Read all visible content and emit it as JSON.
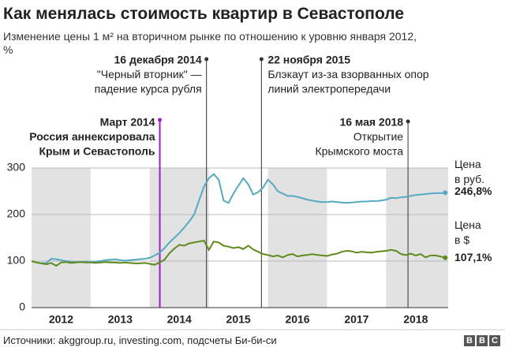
{
  "chart_data": {
    "type": "line",
    "title": "Как менялась стоимость квартир в Севастополе",
    "subtitle": "Изменение цены 1 м² на вторичном рынке по отношению к уровню января 2012,\n%",
    "source": "Источники: akggroup.ru, investing.com, подсчеты Би-би-си",
    "logo": [
      "B",
      "B",
      "C"
    ],
    "x": [
      2012,
      2012.083,
      2012.167,
      2012.25,
      2012.333,
      2012.417,
      2012.5,
      2012.583,
      2012.667,
      2012.75,
      2012.833,
      2012.917,
      2013,
      2013.083,
      2013.167,
      2013.25,
      2013.333,
      2013.417,
      2013.5,
      2013.583,
      2013.667,
      2013.75,
      2013.833,
      2013.917,
      2014,
      2014.083,
      2014.167,
      2014.25,
      2014.333,
      2014.417,
      2014.5,
      2014.583,
      2014.667,
      2014.75,
      2014.833,
      2014.917,
      2015,
      2015.083,
      2015.167,
      2015.25,
      2015.333,
      2015.417,
      2015.5,
      2015.583,
      2015.667,
      2015.75,
      2015.833,
      2015.917,
      2016,
      2016.083,
      2016.167,
      2016.25,
      2016.333,
      2016.417,
      2016.5,
      2016.583,
      2016.667,
      2016.75,
      2016.833,
      2016.917,
      2017,
      2017.083,
      2017.167,
      2017.25,
      2017.333,
      2017.417,
      2017.5,
      2017.583,
      2017.667,
      2017.75,
      2017.833,
      2017.917,
      2018,
      2018.083,
      2018.167,
      2018.25,
      2018.333,
      2018.417,
      2018.5,
      2018.583,
      2018.667,
      2018.75,
      2018.833,
      2018.917,
      2019
    ],
    "series": [
      {
        "name": "Цена\nв руб.",
        "color": "#55aac2",
        "values": [
          100,
          97,
          95,
          96,
          105,
          104,
          102,
          100,
          99,
          98,
          98,
          99,
          98,
          99,
          100,
          102,
          103,
          104,
          102,
          101,
          102,
          103,
          104,
          105,
          107,
          112,
          118,
          128,
          140,
          150,
          160,
          172,
          185,
          200,
          230,
          260,
          278,
          287,
          275,
          230,
          225,
          245,
          262,
          278,
          265,
          243,
          248,
          258,
          275,
          265,
          250,
          245,
          240,
          240,
          238,
          235,
          232,
          230,
          228,
          227,
          227,
          228,
          227,
          226,
          225,
          226,
          227,
          228,
          228,
          229,
          229,
          230,
          232,
          236,
          235,
          237,
          238,
          240,
          242,
          243,
          244,
          245,
          246,
          246,
          246.8
        ],
        "value_labels": [
          null,
          null,
          null,
          null,
          null,
          null,
          null,
          null,
          null,
          null,
          null,
          null,
          null,
          null,
          null,
          null,
          null,
          null,
          null,
          null,
          null,
          null,
          null,
          null,
          null,
          null,
          null,
          null,
          null,
          null,
          null,
          null,
          null,
          null,
          null,
          null,
          null,
          null,
          null,
          null,
          null,
          null,
          null,
          null,
          null,
          null,
          null,
          null,
          null,
          null,
          null,
          null,
          null,
          null,
          null,
          null,
          null,
          null,
          null,
          null,
          null,
          null,
          null,
          null,
          null,
          null,
          null,
          null,
          null,
          null,
          null,
          null,
          null,
          null,
          null,
          null,
          null,
          null,
          null,
          null,
          null,
          null,
          null,
          null,
          "246,8%"
        ]
      },
      {
        "name": "Цена\nв $",
        "color": "#5f8a1c",
        "values": [
          100,
          97,
          95,
          93,
          96,
          90,
          97,
          98,
          96,
          97,
          98,
          97,
          97,
          96,
          97,
          98,
          97,
          97,
          96,
          97,
          96,
          95,
          95,
          96,
          94,
          92,
          97,
          103,
          117,
          127,
          135,
          133,
          138,
          140,
          142,
          144,
          124,
          142,
          140,
          133,
          131,
          128,
          130,
          126,
          133,
          125,
          120,
          115,
          113,
          110,
          112,
          108,
          113,
          115,
          110,
          112,
          113,
          115,
          113,
          112,
          111,
          114,
          116,
          120,
          122,
          121,
          118,
          120,
          119,
          118,
          120,
          121,
          122,
          124,
          122,
          115,
          113,
          116,
          112,
          115,
          108,
          112,
          112,
          110,
          107.1
        ],
        "value_labels": [
          null,
          null,
          null,
          null,
          null,
          null,
          null,
          null,
          null,
          null,
          null,
          null,
          null,
          null,
          null,
          null,
          null,
          null,
          null,
          null,
          null,
          null,
          null,
          null,
          null,
          null,
          null,
          null,
          null,
          null,
          null,
          null,
          null,
          null,
          null,
          null,
          null,
          null,
          null,
          null,
          null,
          null,
          null,
          null,
          null,
          null,
          null,
          null,
          null,
          null,
          null,
          null,
          null,
          null,
          null,
          null,
          null,
          null,
          null,
          null,
          null,
          null,
          null,
          null,
          null,
          null,
          null,
          null,
          null,
          null,
          null,
          null,
          null,
          null,
          null,
          null,
          null,
          null,
          null,
          null,
          null,
          null,
          null,
          null,
          "107,1%"
        ]
      }
    ],
    "xlim": [
      2012,
      2019.05
    ],
    "xticks": [
      {
        "value": 2012.5,
        "label": "2012"
      },
      {
        "value": 2013.5,
        "label": "2013"
      },
      {
        "value": 2014.5,
        "label": "2014"
      },
      {
        "value": 2015.5,
        "label": "2015"
      },
      {
        "value": 2016.5,
        "label": "2016"
      },
      {
        "value": 2017.5,
        "label": "2017"
      },
      {
        "value": 2018.5,
        "label": "2018"
      }
    ],
    "ylim": [
      0,
      300
    ],
    "yticks": [
      0,
      100,
      200,
      300
    ],
    "grid": true,
    "annotations": [
      {
        "x": 2014.17,
        "color": "#9b1fc0",
        "lines": [
          "Март 2014",
          "Россия аннексировала",
          "Крым и Севастополь"
        ],
        "bold_lines": 3
      },
      {
        "x": 2014.96,
        "color": "#333333",
        "lines": [
          "16 декабря 2014",
          "\"Черный вторник\" —",
          "падение курса рубля"
        ],
        "bold_lines": 1
      },
      {
        "x": 2015.89,
        "color": "#333333",
        "lines": [
          "22 ноября 2015",
          "Блэкаут из-за взорванных опор",
          "линий электропередачи"
        ],
        "bold_lines": 1
      },
      {
        "x": 2018.37,
        "color": "#333333",
        "lines": [
          "16 мая 2018",
          "Открытие",
          "Крымского моста"
        ],
        "bold_lines": 1
      }
    ]
  }
}
